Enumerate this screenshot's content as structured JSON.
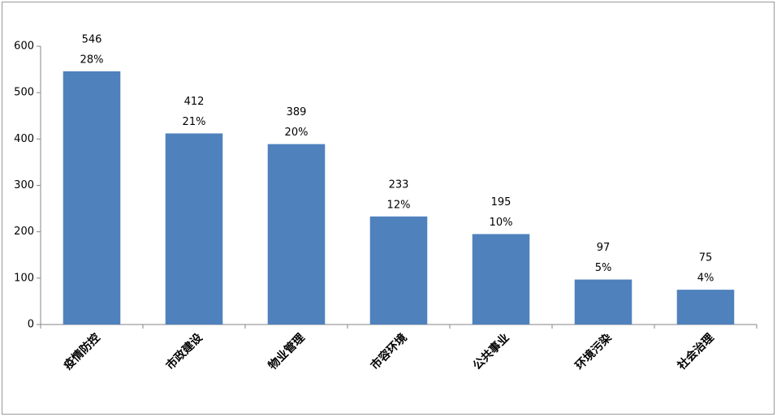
{
  "chart_data": {
    "type": "bar",
    "categories": [
      "疫情防控",
      "市政建设",
      "物业管理",
      "市容环境",
      "公共事业",
      "环境污染",
      "社会治理"
    ],
    "values": [
      546,
      412,
      389,
      233,
      195,
      97,
      75
    ],
    "percent_labels": [
      "28%",
      "21%",
      "20%",
      "12%",
      "10%",
      "5%",
      "4%"
    ],
    "color": "#4f81bd",
    "ylim": [
      0,
      600
    ],
    "yticks": [
      0,
      100,
      200,
      300,
      400,
      500,
      600
    ],
    "grid": false
  }
}
